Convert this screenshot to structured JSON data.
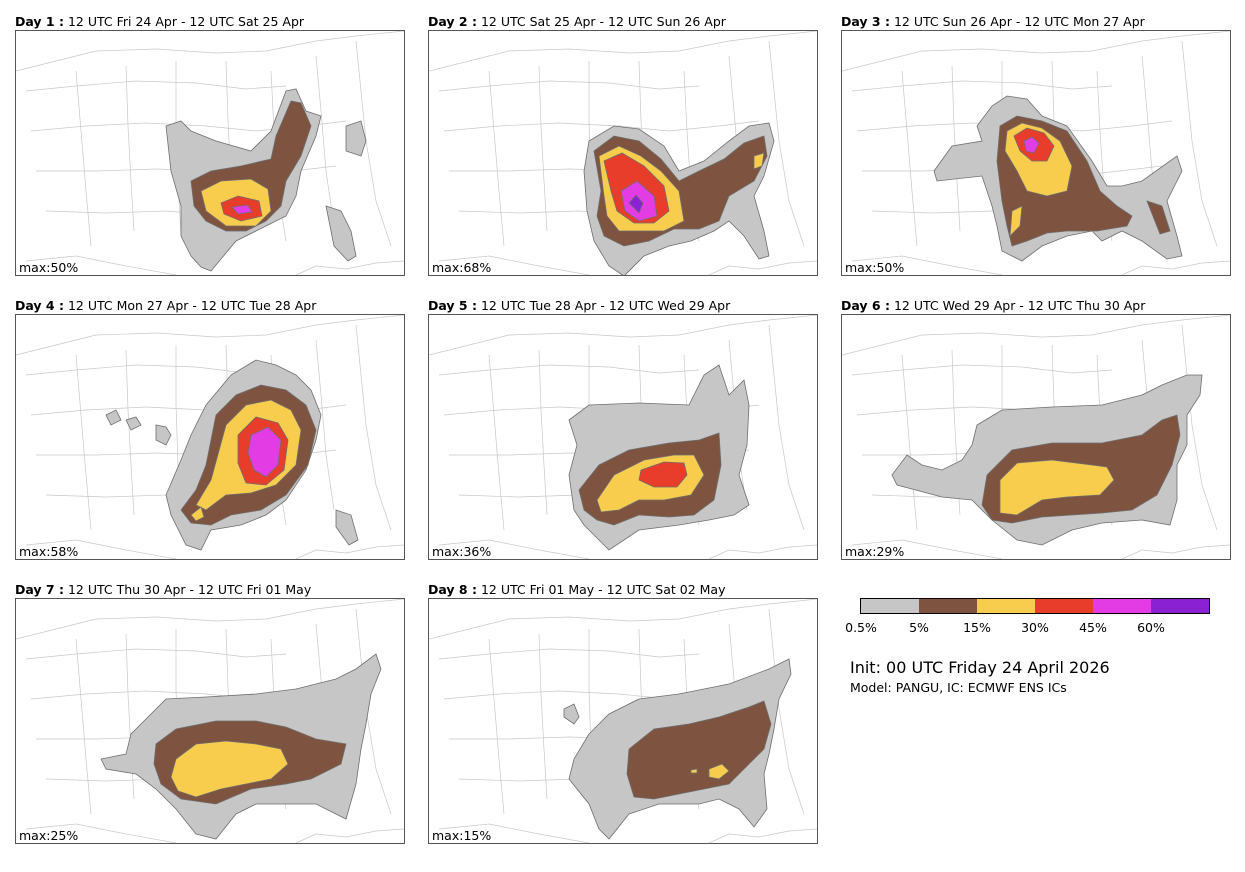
{
  "colors": {
    "c1": "#c6c6c6",
    "c2": "#7e5440",
    "c3": "#f8cd4d",
    "c4": "#e83d2a",
    "c5": "#e43ce4",
    "c6": "#8a22d4"
  },
  "panels": [
    {
      "day": "Day 1 :",
      "period": "12 UTC Fri 24 Apr - 12 UTC Sat 25 Apr",
      "max": "max:50%"
    },
    {
      "day": "Day 2 :",
      "period": "12 UTC Sat 25 Apr - 12 UTC Sun 26 Apr",
      "max": "max:68%"
    },
    {
      "day": "Day 3 :",
      "period": "12 UTC Sun 26 Apr - 12 UTC Mon 27 Apr",
      "max": "max:50%"
    },
    {
      "day": "Day 4 :",
      "period": "12 UTC Mon 27 Apr - 12 UTC Tue 28 Apr",
      "max": "max:58%"
    },
    {
      "day": "Day 5 :",
      "period": "12 UTC Tue 28 Apr - 12 UTC Wed 29 Apr",
      "max": "max:36%"
    },
    {
      "day": "Day 6 :",
      "period": "12 UTC Wed 29 Apr - 12 UTC Thu 30 Apr",
      "max": "max:29%"
    },
    {
      "day": "Day 7 :",
      "period": "12 UTC Thu 30 Apr - 12 UTC Fri 01 May",
      "max": "max:25%"
    },
    {
      "day": "Day 8 :",
      "period": "12 UTC Fri 01 May - 12 UTC Sat 02 May",
      "max": "max:15%"
    }
  ],
  "legend": {
    "ticks": [
      "0.5%",
      "5%",
      "15%",
      "30%",
      "45%",
      "60%"
    ],
    "init": "Init: 00 UTC Friday 24 April 2026",
    "model": "Model: PANGU, IC: ECMWF ENS ICs"
  }
}
